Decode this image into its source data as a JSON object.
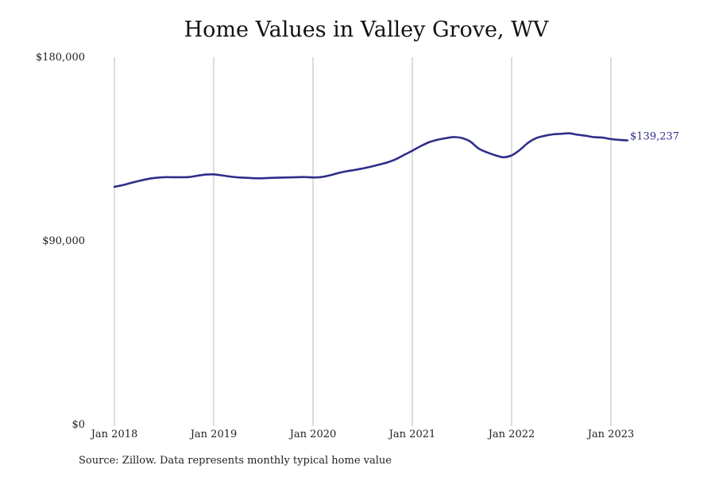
{
  "chart_data": {
    "type": "line",
    "title": "Home Values in Valley Grove, WV",
    "xlabel": "",
    "ylabel": "",
    "ylim": [
      0,
      180000
    ],
    "xlim": [
      "2018-01",
      "2023-03"
    ],
    "y_ticks": [
      {
        "value": 0,
        "label": "$0"
      },
      {
        "value": 90000,
        "label": "$90,000"
      },
      {
        "value": 180000,
        "label": "$180,000"
      }
    ],
    "x_ticks": [
      {
        "value": "2018-01",
        "label": "Jan 2018"
      },
      {
        "value": "2019-01",
        "label": "Jan 2019"
      },
      {
        "value": "2020-01",
        "label": "Jan 2020"
      },
      {
        "value": "2021-01",
        "label": "Jan 2021"
      },
      {
        "value": "2022-01",
        "label": "Jan 2022"
      },
      {
        "value": "2023-01",
        "label": "Jan 2023"
      }
    ],
    "grid": "vertical lines at year ticks",
    "legend": "none",
    "end_label": "$139,237",
    "series": [
      {
        "color": "#2e2e8a",
        "points": [
          [
            "2018-01",
            116500
          ],
          [
            "2018-02",
            117300
          ],
          [
            "2018-03",
            118400
          ],
          [
            "2018-04",
            119400
          ],
          [
            "2018-05",
            120300
          ],
          [
            "2018-06",
            120900
          ],
          [
            "2018-07",
            121200
          ],
          [
            "2018-08",
            121200
          ],
          [
            "2018-09",
            121200
          ],
          [
            "2018-10",
            121300
          ],
          [
            "2018-11",
            121900
          ],
          [
            "2018-12",
            122500
          ],
          [
            "2019-01",
            122600
          ],
          [
            "2019-02",
            122100
          ],
          [
            "2019-03",
            121500
          ],
          [
            "2019-04",
            121100
          ],
          [
            "2019-05",
            120900
          ],
          [
            "2019-06",
            120700
          ],
          [
            "2019-07",
            120700
          ],
          [
            "2019-08",
            120900
          ],
          [
            "2019-09",
            121000
          ],
          [
            "2019-10",
            121100
          ],
          [
            "2019-11",
            121200
          ],
          [
            "2019-12",
            121300
          ],
          [
            "2020-01",
            121100
          ],
          [
            "2020-02",
            121300
          ],
          [
            "2020-03",
            122100
          ],
          [
            "2020-04",
            123200
          ],
          [
            "2020-05",
            124100
          ],
          [
            "2020-06",
            124700
          ],
          [
            "2020-07",
            125500
          ],
          [
            "2020-08",
            126400
          ],
          [
            "2020-09",
            127400
          ],
          [
            "2020-10",
            128500
          ],
          [
            "2020-11",
            130000
          ],
          [
            "2020-12",
            132100
          ],
          [
            "2021-01",
            134200
          ],
          [
            "2021-02",
            136400
          ],
          [
            "2021-03",
            138300
          ],
          [
            "2021-04",
            139500
          ],
          [
            "2021-05",
            140300
          ],
          [
            "2021-06",
            140900
          ],
          [
            "2021-07",
            140400
          ],
          [
            "2021-08",
            138700
          ],
          [
            "2021-09",
            135300
          ],
          [
            "2021-10",
            133400
          ],
          [
            "2021-11",
            132000
          ],
          [
            "2021-12",
            131000
          ],
          [
            "2022-01",
            131900
          ],
          [
            "2022-02",
            134600
          ],
          [
            "2022-03",
            138100
          ],
          [
            "2022-04",
            140400
          ],
          [
            "2022-05",
            141500
          ],
          [
            "2022-06",
            142200
          ],
          [
            "2022-07",
            142500
          ],
          [
            "2022-08",
            142700
          ],
          [
            "2022-09",
            142000
          ],
          [
            "2022-10",
            141500
          ],
          [
            "2022-11",
            140800
          ],
          [
            "2022-12",
            140600
          ],
          [
            "2023-01",
            139900
          ],
          [
            "2023-02",
            139500
          ],
          [
            "2023-03",
            139237
          ]
        ]
      }
    ]
  },
  "footer": {
    "source": "Source: Zillow. Data represents monthly typical home value"
  }
}
